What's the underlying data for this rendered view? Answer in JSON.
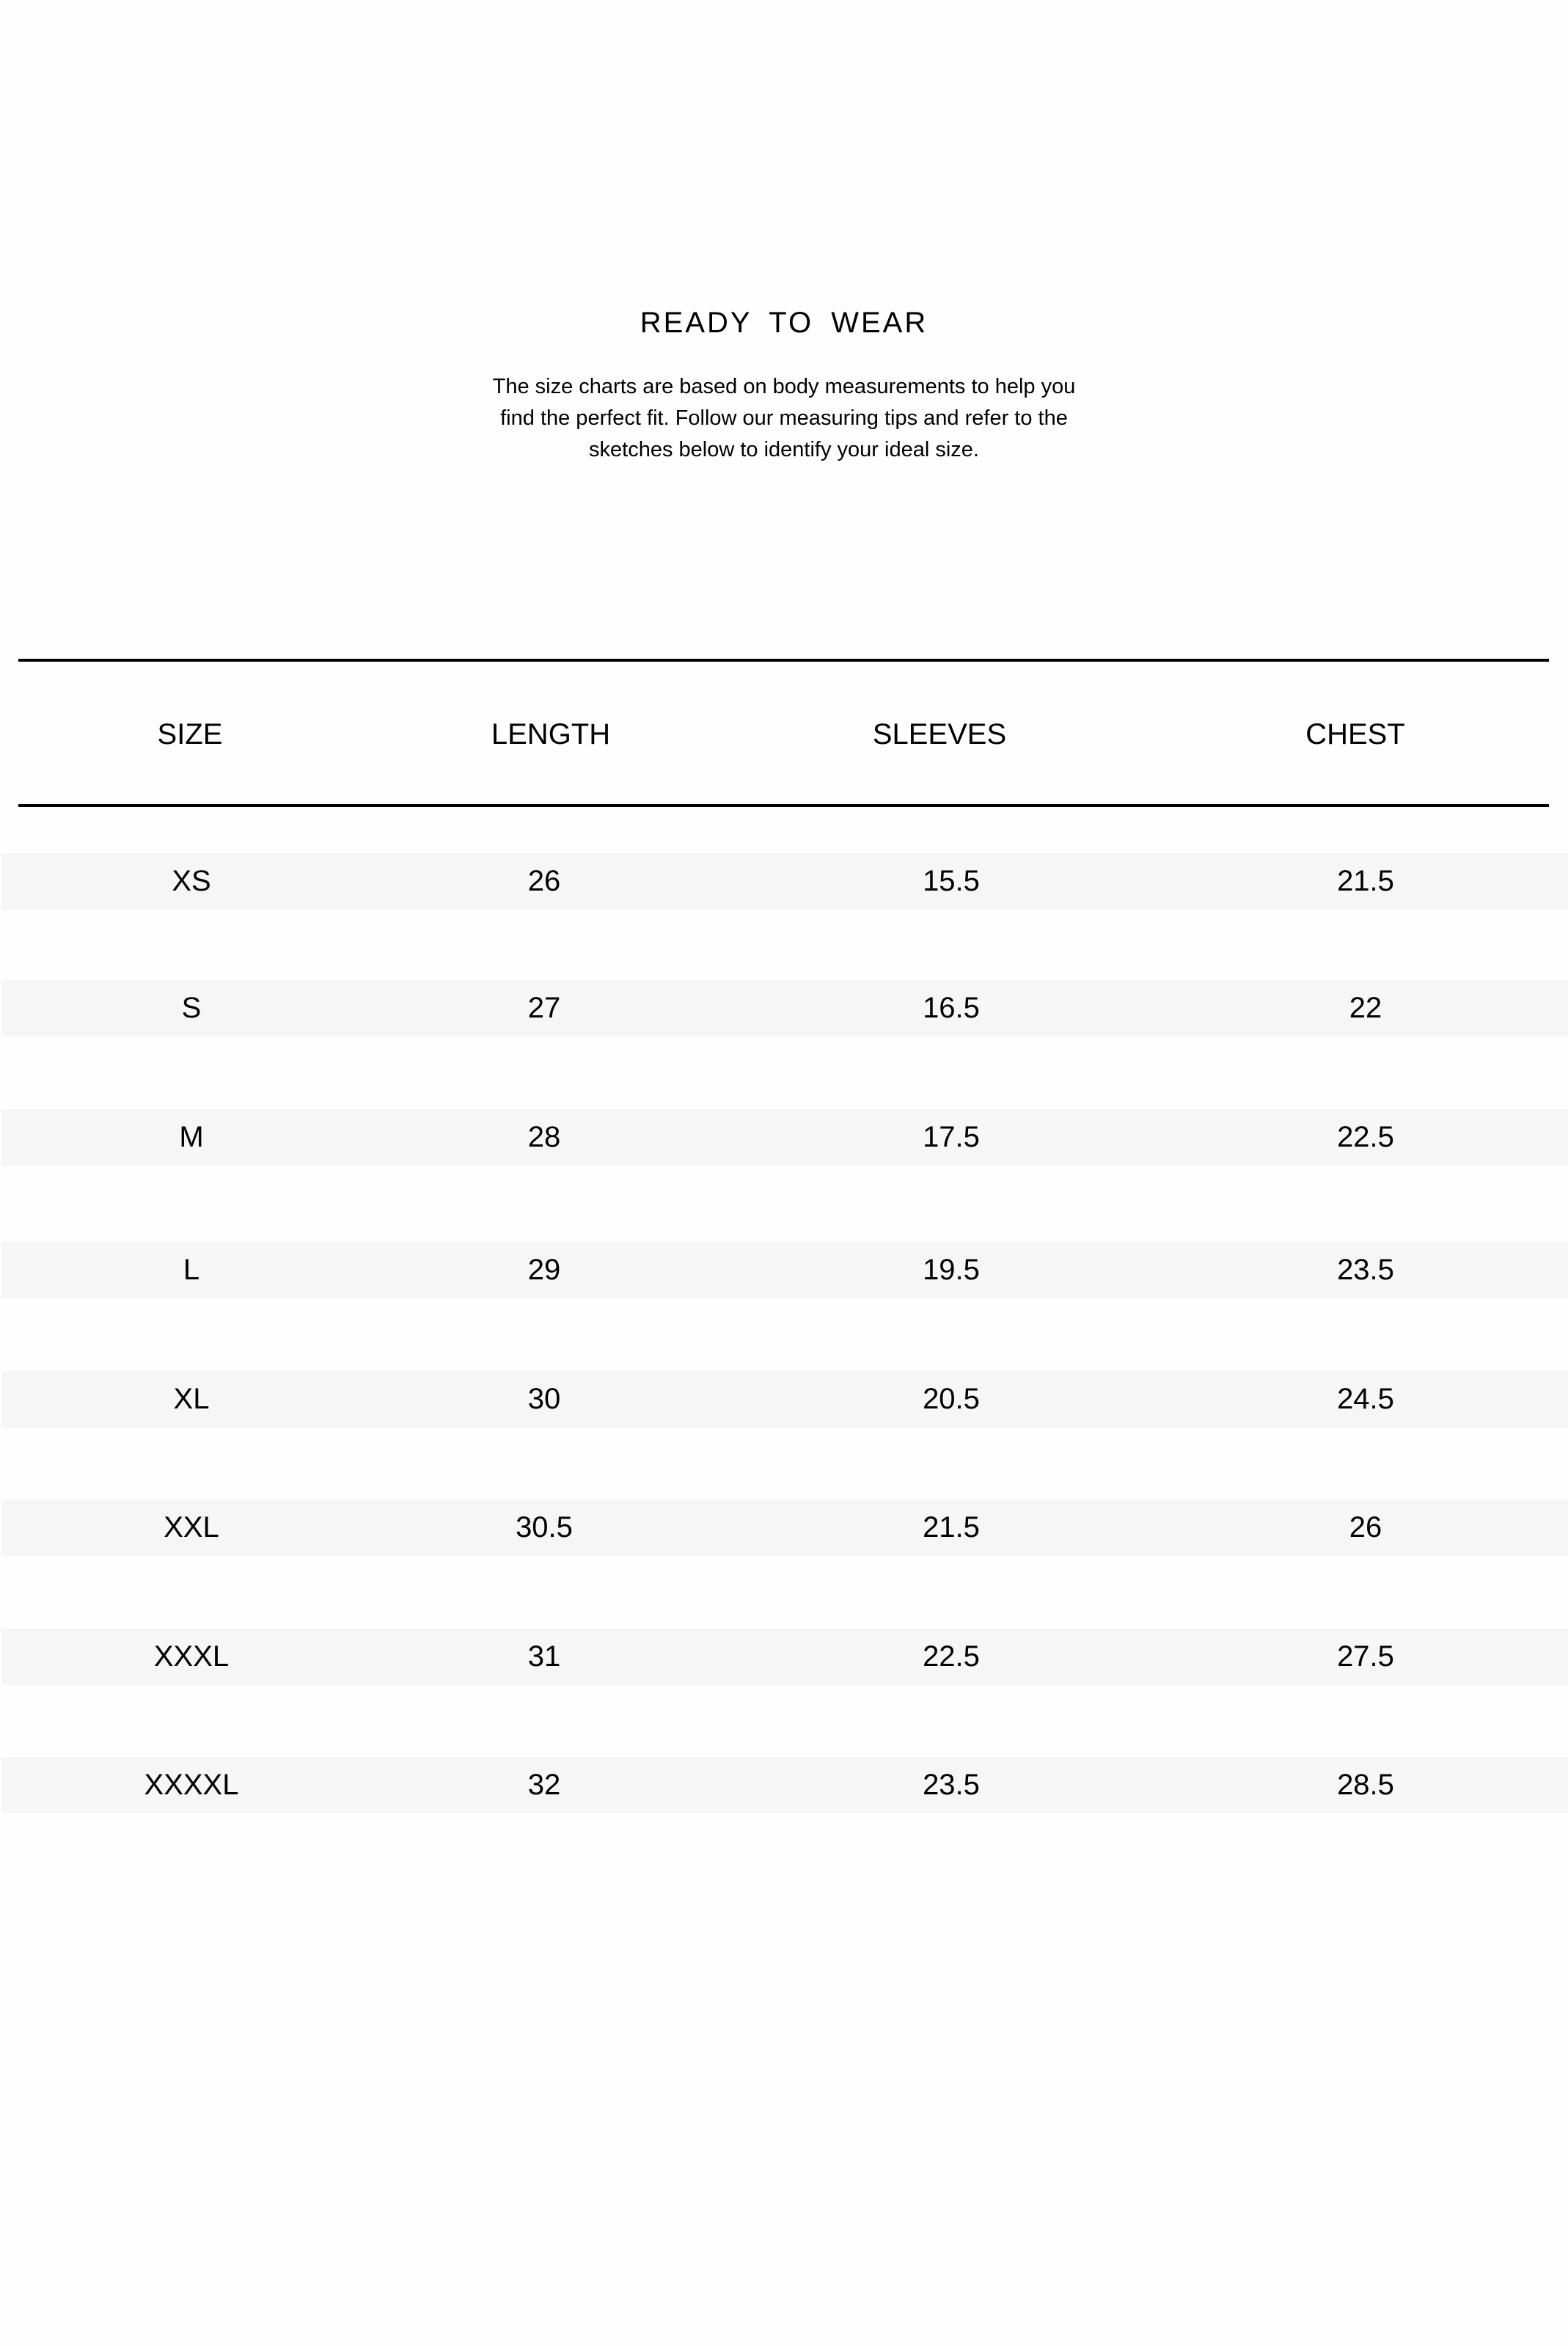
{
  "title": "READY TO WEAR",
  "intro": "The size charts are based on body measurements to help you find the perfect fit. Follow our measuring tips and refer to the sketches below to identify your ideal size.",
  "table": {
    "headers": [
      "SIZE",
      "LENGTH",
      "SLEEVES",
      "CHEST"
    ],
    "row_color": "#f6f6f6",
    "rows": [
      [
        "XS",
        "26",
        "15.5",
        "21.5"
      ],
      [
        "S",
        "27",
        "16.5",
        "22"
      ],
      [
        "M",
        "28",
        "17.5",
        "22.5"
      ],
      [
        "L",
        "29",
        "19.5",
        "23.5"
      ],
      [
        "XL",
        "30",
        "20.5",
        "24.5"
      ],
      [
        "XXL",
        "30.5",
        "21.5",
        "26"
      ],
      [
        "XXXL",
        "31",
        "22.5",
        "27.5"
      ],
      [
        "XXXXL",
        "32",
        "23.5",
        "28.5"
      ]
    ]
  }
}
